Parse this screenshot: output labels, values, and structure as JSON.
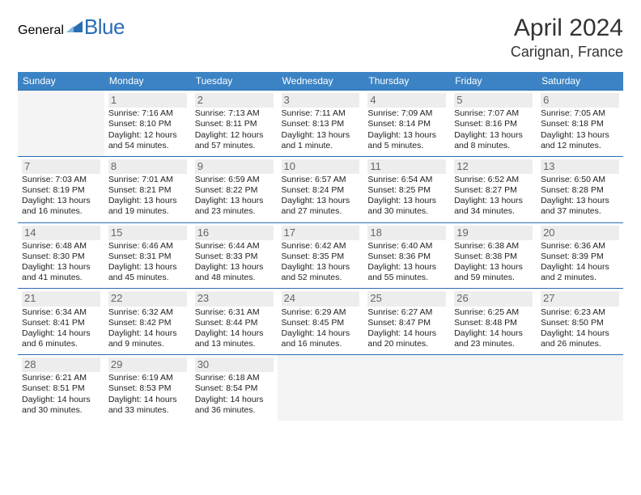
{
  "logo": {
    "general": "General",
    "blue": "Blue"
  },
  "title": "April 2024",
  "location": "Carignan, France",
  "colors": {
    "header_bg": "#3b83c4",
    "row_border": "#2a6db3",
    "daynum_bg": "#ededed",
    "empty_bg": "#f4f4f4",
    "logo_gray": "#5a5a5a",
    "logo_blue": "#2a6db3"
  },
  "weekdays": [
    "Sunday",
    "Monday",
    "Tuesday",
    "Wednesday",
    "Thursday",
    "Friday",
    "Saturday"
  ],
  "weeks": [
    [
      null,
      {
        "n": "1",
        "sr": "Sunrise: 7:16 AM",
        "ss": "Sunset: 8:10 PM",
        "dl1": "Daylight: 12 hours",
        "dl2": "and 54 minutes."
      },
      {
        "n": "2",
        "sr": "Sunrise: 7:13 AM",
        "ss": "Sunset: 8:11 PM",
        "dl1": "Daylight: 12 hours",
        "dl2": "and 57 minutes."
      },
      {
        "n": "3",
        "sr": "Sunrise: 7:11 AM",
        "ss": "Sunset: 8:13 PM",
        "dl1": "Daylight: 13 hours",
        "dl2": "and 1 minute."
      },
      {
        "n": "4",
        "sr": "Sunrise: 7:09 AM",
        "ss": "Sunset: 8:14 PM",
        "dl1": "Daylight: 13 hours",
        "dl2": "and 5 minutes."
      },
      {
        "n": "5",
        "sr": "Sunrise: 7:07 AM",
        "ss": "Sunset: 8:16 PM",
        "dl1": "Daylight: 13 hours",
        "dl2": "and 8 minutes."
      },
      {
        "n": "6",
        "sr": "Sunrise: 7:05 AM",
        "ss": "Sunset: 8:18 PM",
        "dl1": "Daylight: 13 hours",
        "dl2": "and 12 minutes."
      }
    ],
    [
      {
        "n": "7",
        "sr": "Sunrise: 7:03 AM",
        "ss": "Sunset: 8:19 PM",
        "dl1": "Daylight: 13 hours",
        "dl2": "and 16 minutes."
      },
      {
        "n": "8",
        "sr": "Sunrise: 7:01 AM",
        "ss": "Sunset: 8:21 PM",
        "dl1": "Daylight: 13 hours",
        "dl2": "and 19 minutes."
      },
      {
        "n": "9",
        "sr": "Sunrise: 6:59 AM",
        "ss": "Sunset: 8:22 PM",
        "dl1": "Daylight: 13 hours",
        "dl2": "and 23 minutes."
      },
      {
        "n": "10",
        "sr": "Sunrise: 6:57 AM",
        "ss": "Sunset: 8:24 PM",
        "dl1": "Daylight: 13 hours",
        "dl2": "and 27 minutes."
      },
      {
        "n": "11",
        "sr": "Sunrise: 6:54 AM",
        "ss": "Sunset: 8:25 PM",
        "dl1": "Daylight: 13 hours",
        "dl2": "and 30 minutes."
      },
      {
        "n": "12",
        "sr": "Sunrise: 6:52 AM",
        "ss": "Sunset: 8:27 PM",
        "dl1": "Daylight: 13 hours",
        "dl2": "and 34 minutes."
      },
      {
        "n": "13",
        "sr": "Sunrise: 6:50 AM",
        "ss": "Sunset: 8:28 PM",
        "dl1": "Daylight: 13 hours",
        "dl2": "and 37 minutes."
      }
    ],
    [
      {
        "n": "14",
        "sr": "Sunrise: 6:48 AM",
        "ss": "Sunset: 8:30 PM",
        "dl1": "Daylight: 13 hours",
        "dl2": "and 41 minutes."
      },
      {
        "n": "15",
        "sr": "Sunrise: 6:46 AM",
        "ss": "Sunset: 8:31 PM",
        "dl1": "Daylight: 13 hours",
        "dl2": "and 45 minutes."
      },
      {
        "n": "16",
        "sr": "Sunrise: 6:44 AM",
        "ss": "Sunset: 8:33 PM",
        "dl1": "Daylight: 13 hours",
        "dl2": "and 48 minutes."
      },
      {
        "n": "17",
        "sr": "Sunrise: 6:42 AM",
        "ss": "Sunset: 8:35 PM",
        "dl1": "Daylight: 13 hours",
        "dl2": "and 52 minutes."
      },
      {
        "n": "18",
        "sr": "Sunrise: 6:40 AM",
        "ss": "Sunset: 8:36 PM",
        "dl1": "Daylight: 13 hours",
        "dl2": "and 55 minutes."
      },
      {
        "n": "19",
        "sr": "Sunrise: 6:38 AM",
        "ss": "Sunset: 8:38 PM",
        "dl1": "Daylight: 13 hours",
        "dl2": "and 59 minutes."
      },
      {
        "n": "20",
        "sr": "Sunrise: 6:36 AM",
        "ss": "Sunset: 8:39 PM",
        "dl1": "Daylight: 14 hours",
        "dl2": "and 2 minutes."
      }
    ],
    [
      {
        "n": "21",
        "sr": "Sunrise: 6:34 AM",
        "ss": "Sunset: 8:41 PM",
        "dl1": "Daylight: 14 hours",
        "dl2": "and 6 minutes."
      },
      {
        "n": "22",
        "sr": "Sunrise: 6:32 AM",
        "ss": "Sunset: 8:42 PM",
        "dl1": "Daylight: 14 hours",
        "dl2": "and 9 minutes."
      },
      {
        "n": "23",
        "sr": "Sunrise: 6:31 AM",
        "ss": "Sunset: 8:44 PM",
        "dl1": "Daylight: 14 hours",
        "dl2": "and 13 minutes."
      },
      {
        "n": "24",
        "sr": "Sunrise: 6:29 AM",
        "ss": "Sunset: 8:45 PM",
        "dl1": "Daylight: 14 hours",
        "dl2": "and 16 minutes."
      },
      {
        "n": "25",
        "sr": "Sunrise: 6:27 AM",
        "ss": "Sunset: 8:47 PM",
        "dl1": "Daylight: 14 hours",
        "dl2": "and 20 minutes."
      },
      {
        "n": "26",
        "sr": "Sunrise: 6:25 AM",
        "ss": "Sunset: 8:48 PM",
        "dl1": "Daylight: 14 hours",
        "dl2": "and 23 minutes."
      },
      {
        "n": "27",
        "sr": "Sunrise: 6:23 AM",
        "ss": "Sunset: 8:50 PM",
        "dl1": "Daylight: 14 hours",
        "dl2": "and 26 minutes."
      }
    ],
    [
      {
        "n": "28",
        "sr": "Sunrise: 6:21 AM",
        "ss": "Sunset: 8:51 PM",
        "dl1": "Daylight: 14 hours",
        "dl2": "and 30 minutes."
      },
      {
        "n": "29",
        "sr": "Sunrise: 6:19 AM",
        "ss": "Sunset: 8:53 PM",
        "dl1": "Daylight: 14 hours",
        "dl2": "and 33 minutes."
      },
      {
        "n": "30",
        "sr": "Sunrise: 6:18 AM",
        "ss": "Sunset: 8:54 PM",
        "dl1": "Daylight: 14 hours",
        "dl2": "and 36 minutes."
      },
      null,
      null,
      null,
      null
    ]
  ]
}
